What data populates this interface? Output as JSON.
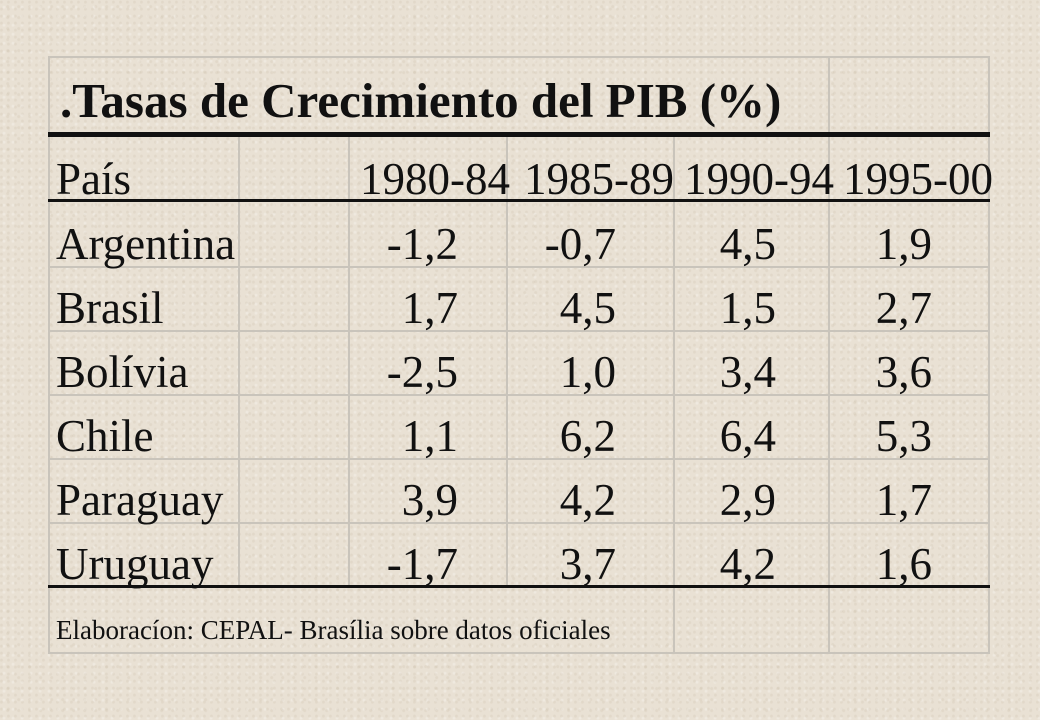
{
  "table": {
    "title": ".Tasas de Crecimiento del PIB (%)",
    "headers": {
      "country": "País",
      "periods": [
        "1980-84",
        "1985-89",
        "1990-94",
        "1995-00"
      ]
    },
    "rows": [
      {
        "country": "Argentina",
        "values": [
          "-1,2",
          "-0,7",
          "4,5",
          "1,9"
        ]
      },
      {
        "country": "Brasil",
        "values": [
          "1,7",
          "4,5",
          "1,5",
          "2,7"
        ]
      },
      {
        "country": "Bolívia",
        "values": [
          "-2,5",
          "1,0",
          "3,4",
          "3,6"
        ]
      },
      {
        "country": "Chile",
        "values": [
          "1,1",
          "6,2",
          "6,4",
          "5,3"
        ]
      },
      {
        "country": "Paraguay",
        "values": [
          "3,9",
          "4,2",
          "2,9",
          "1,7"
        ]
      },
      {
        "country": "Uruguay",
        "values": [
          "-1,7",
          "3,7",
          "4,2",
          "1,6"
        ]
      }
    ],
    "source": "Elaboracíon: CEPAL- Brasília sobre datos oficiales"
  }
}
